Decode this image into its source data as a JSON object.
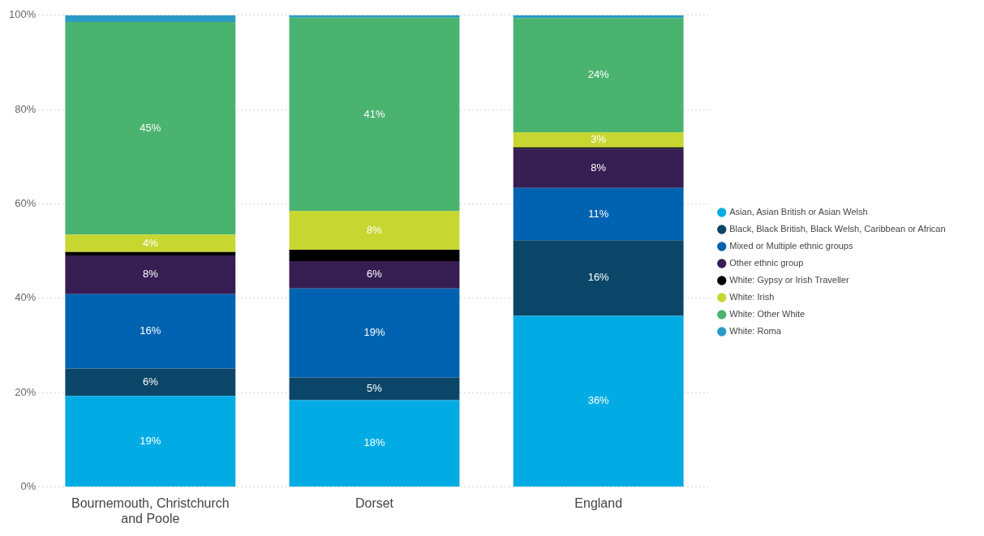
{
  "chart_data": {
    "type": "bar",
    "stacked": true,
    "categories": [
      "Bournemouth, Christchurch and Poole",
      "Dorset",
      "England"
    ],
    "series": [
      {
        "name": "Asian, Asian British or Asian Welsh",
        "color": "#00ace3",
        "values": [
          19.3,
          18.4,
          36.3
        ],
        "value_labels": [
          "19%",
          "18%",
          "36%"
        ]
      },
      {
        "name": "Black, Black British, Black Welsh, Caribbean or African",
        "color": "#0b4668",
        "values": [
          5.8,
          4.8,
          16.0
        ],
        "value_labels": [
          "6%",
          "5%",
          "16%"
        ]
      },
      {
        "name": "Mixed or Multiple ethnic groups",
        "color": "#0063b1",
        "values": [
          15.8,
          18.9,
          11.1
        ],
        "value_labels": [
          "16%",
          "19%",
          "11%"
        ]
      },
      {
        "name": "Other ethnic group",
        "color": "#361d52",
        "values": [
          8.2,
          5.8,
          8.3
        ],
        "value_labels": [
          "8%",
          "6%",
          "8%"
        ]
      },
      {
        "name": "White: Gypsy or Irish Traveller",
        "color": "#000000",
        "values": [
          0.7,
          2.4,
          0.3
        ],
        "value_labels": [
          null,
          null,
          null
        ]
      },
      {
        "name": "White: Irish",
        "color": "#c8d632",
        "values": [
          3.7,
          8.2,
          3.2
        ],
        "value_labels": [
          "4%",
          "8%",
          "3%"
        ]
      },
      {
        "name": "White: Other White",
        "color": "#4ab370",
        "values": [
          45.1,
          41.0,
          24.2
        ],
        "value_labels": [
          "45%",
          "41%",
          "24%"
        ]
      },
      {
        "name": "White: Roma",
        "color": "#2a9ac7",
        "values": [
          1.4,
          0.5,
          0.6
        ],
        "value_labels": [
          null,
          null,
          null
        ]
      }
    ],
    "ylim": [
      0,
      100
    ],
    "yticks": [
      {
        "value": 0,
        "label": "0%"
      },
      {
        "value": 20,
        "label": "20%"
      },
      {
        "value": 40,
        "label": "40%"
      },
      {
        "value": 60,
        "label": "60%"
      },
      {
        "value": 80,
        "label": "80%"
      },
      {
        "value": 100,
        "label": "100%"
      }
    ],
    "grid": "y",
    "legend": "right"
  }
}
